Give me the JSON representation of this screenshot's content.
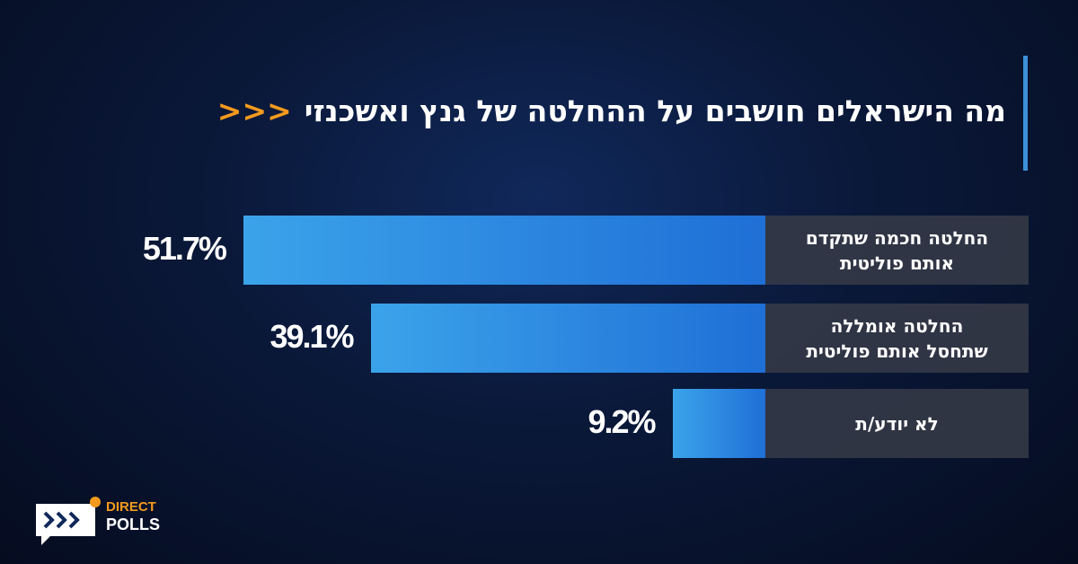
{
  "chart_data": {
    "type": "bar",
    "orientation": "horizontal",
    "title": "מה הישראלים חושבים על ההחלטה של גנץ ואשכנזי",
    "title_marker": "<<<",
    "categories": [
      "החלטה חכמה שתקדם אותם פוליטית",
      "החלטה אומללה שתחסל אותם פוליטית",
      "לא יודע/ת"
    ],
    "values": [
      51.7,
      39.1,
      9.2
    ],
    "value_labels": [
      "51.7%",
      "39.1%",
      "9.2%"
    ],
    "color": "#1f6fd6"
  },
  "logo": {
    "line1": "DIRECT",
    "line2": "POLLS"
  }
}
